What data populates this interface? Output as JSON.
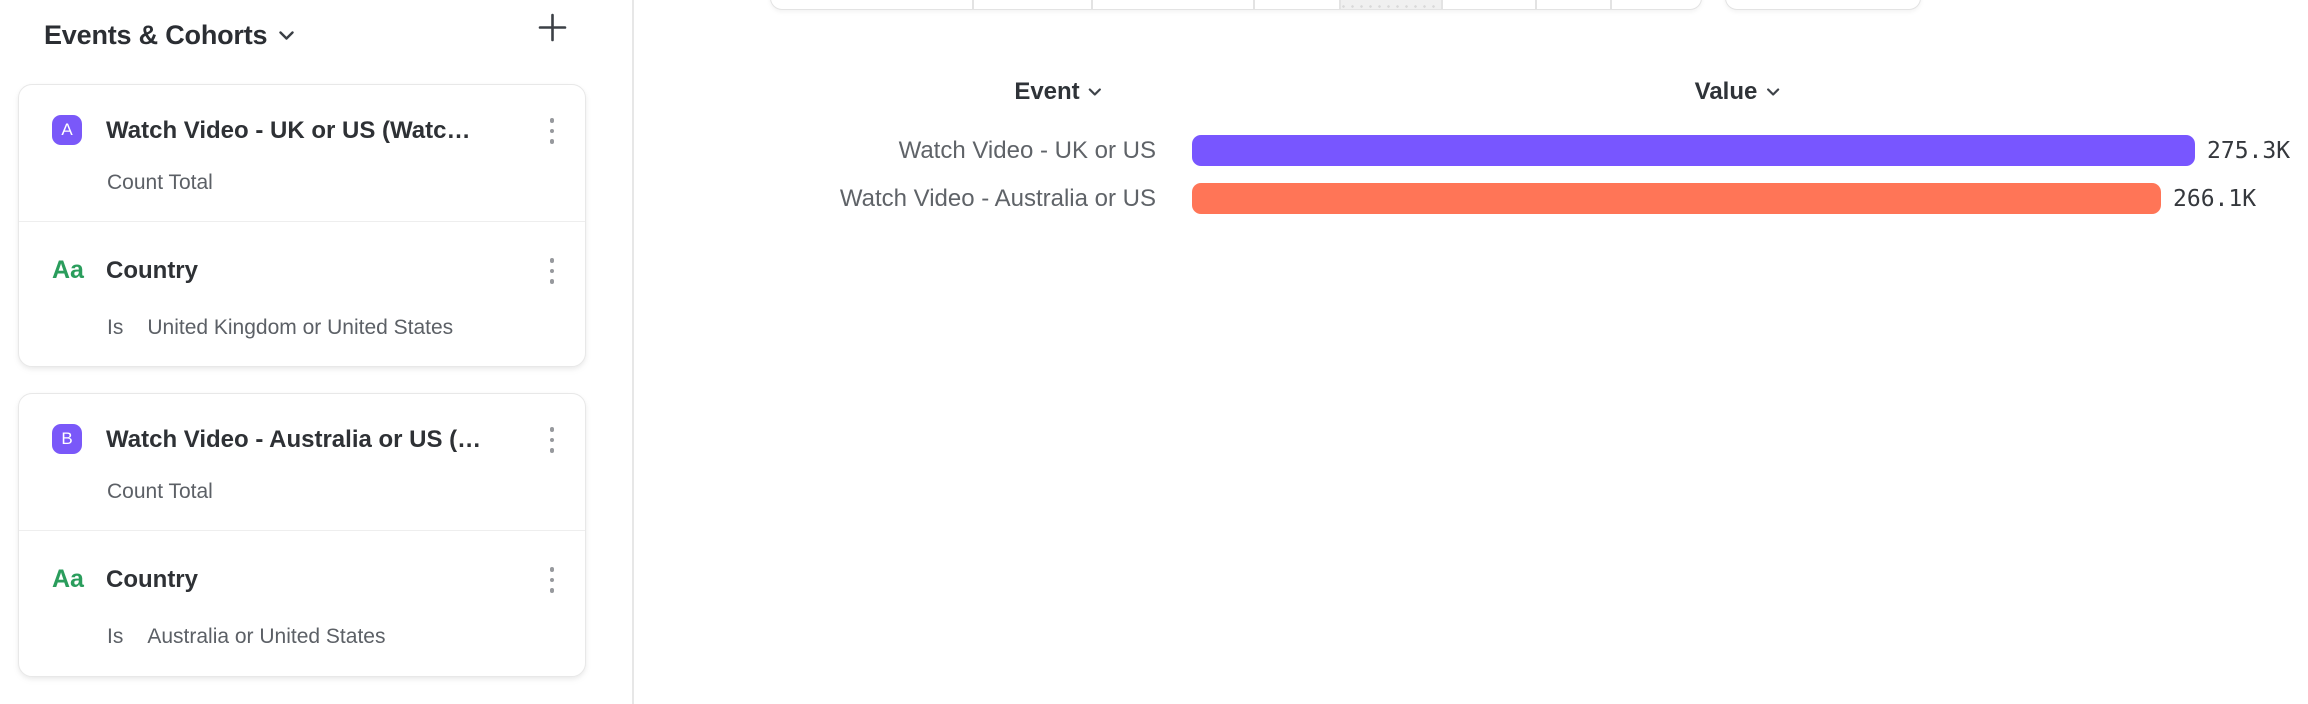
{
  "colors": {
    "badge-purple": "#7a58f9",
    "green": "#2a9d5c",
    "bar-purple": "#7856FF",
    "bar-coral": "#FF7557"
  },
  "sidebar": {
    "title": "Events & Cohorts",
    "groups": [
      {
        "event": {
          "badge": "A",
          "title": "Watch Video - UK or US (Watc…",
          "subtitle": "Count Total"
        },
        "filter": {
          "icon_text": "Aa",
          "name": "Country",
          "operator": "Is",
          "value": "United Kingdom or United States"
        }
      },
      {
        "event": {
          "badge": "B",
          "title": "Watch Video - Australia or US (…",
          "subtitle": "Count Total"
        },
        "filter": {
          "icon_text": "Aa",
          "name": "Country",
          "operator": "Is",
          "value": "Australia or United States"
        }
      }
    ]
  },
  "table": {
    "event_header": "Event",
    "value_header": "Value"
  },
  "chart_data": {
    "type": "bar",
    "orientation": "horizontal",
    "categories": [
      "Watch Video - UK or US",
      "Watch Video - Australia or US"
    ],
    "values": [
      275300,
      266100
    ],
    "value_labels": [
      "275.3K",
      "266.1K"
    ],
    "series_colors": [
      "#7856FF",
      "#FF7557"
    ],
    "xlim": [
      0,
      275300
    ],
    "grid": false,
    "legend": false
  }
}
